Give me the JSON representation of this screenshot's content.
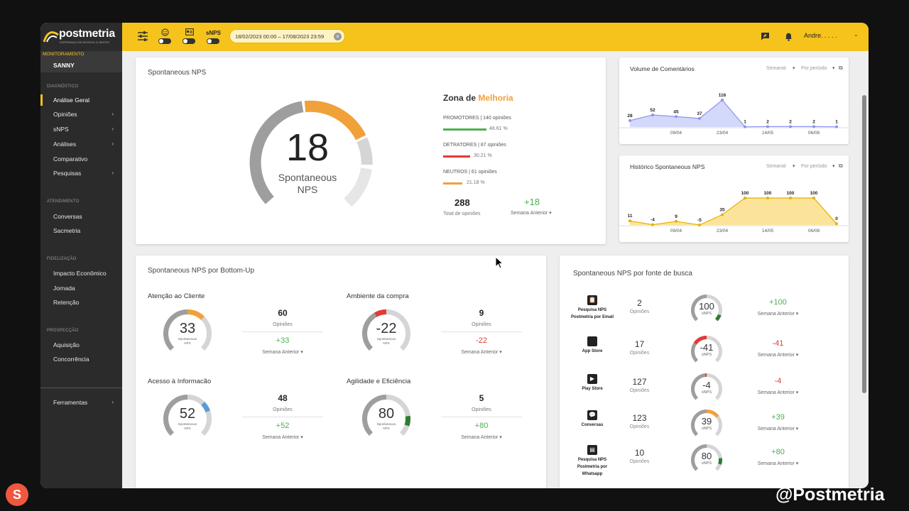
{
  "brand": {
    "name": "postmetria",
    "tagline": "ESPERANÇA DE NOSSOS CLIENTES"
  },
  "header": {
    "snps_label": "sNPS",
    "date_range": "18/02/2023 00:00 – 17/08/2023 23:59",
    "user_name": "Andre. . . . ."
  },
  "sidebar": {
    "monitoring_label": "MONITORAMENTO",
    "account": "SANNY",
    "sections": {
      "diagnostico": "DIAGNÓSTICO",
      "atendimento": "ATENDIMENTO",
      "fidelizacao": "FIDELIZAÇÃO",
      "prospeccao": "PROSPECÇÃO"
    },
    "items": {
      "analise_geral": "Análise Geral",
      "opinioes": "Opiniões",
      "snps": "sNPS",
      "analises": "Análises",
      "comparativo": "Comparativo",
      "pesquisas": "Pesquisas",
      "conversas": "Conversas",
      "sacmetria": "Sacmetria",
      "impacto": "Impacto Econômico",
      "jornada": "Jornada",
      "retencao": "Retenção",
      "aquisicao": "Aquisição",
      "concorrencia": "Concorrência",
      "ferramentas": "Ferramentas"
    }
  },
  "main_card": {
    "title": "Spontaneous NPS",
    "score": "18",
    "score_label_1": "Spontaneous",
    "score_label_2": "NPS",
    "zone_prefix": "Zona de",
    "zone_value": "Melhoria",
    "promotores": {
      "label": "PROMOTORES | 140 opiniões",
      "pct": "48.61 %",
      "fraction": 0.4861
    },
    "detratores": {
      "label": "DETRATORES | 87 opiniões",
      "pct": "30.21 %",
      "fraction": 0.3021
    },
    "neutros": {
      "label": "NEUTROS | 61 opiniões",
      "pct": "21.18 %",
      "fraction": 0.2118
    },
    "total": "288",
    "total_label": "Total de opiniões",
    "delta": "+18",
    "delta_label": "Semana Anterior"
  },
  "volume_card": {
    "title": "Volume de Comentários",
    "filter_1": "Semanal",
    "filter_2": "Por período",
    "chart_data": {
      "type": "area",
      "values": [
        28,
        52,
        45,
        37,
        116,
        1,
        2,
        2,
        2,
        1
      ],
      "labels": [
        "28",
        "52",
        "45",
        "37",
        "116",
        "1",
        "2",
        "2",
        "2",
        "1"
      ],
      "x_ticks": [
        "09/04",
        "23/04",
        "14/05",
        "06/08"
      ],
      "color": "#9fa8f5"
    }
  },
  "historico_card": {
    "title": "Histórico Spontaneous NPS",
    "filter_1": "Semanal",
    "filter_2": "Por período",
    "chart_data": {
      "type": "area",
      "values": [
        11,
        -4,
        9,
        -5,
        35,
        100,
        100,
        100,
        100,
        0
      ],
      "labels": [
        "11",
        "-4",
        "9",
        "-5",
        "35",
        "100",
        "100",
        "100",
        "100",
        "0"
      ],
      "x_ticks": [
        "09/04",
        "23/04",
        "14/05",
        "06/08"
      ],
      "color": "#f6c31c"
    }
  },
  "bottomup_card": {
    "title": "Spontaneous NPS por Bottom-Up",
    "items": [
      {
        "name": "Atenção ao Cliente",
        "score": "33",
        "opinions": "60",
        "opinions_label": "Opiniões",
        "delta": "+33",
        "delta_label": "Semana Anterior",
        "g1": "Spontaneous",
        "g2": "NPS"
      },
      {
        "name": "Ambiente da compra",
        "score": "-22",
        "opinions": "9",
        "opinions_label": "Opiniões",
        "delta": "-22",
        "delta_label": "Semana Anterior",
        "g1": "Spontaneous",
        "g2": "NPS"
      },
      {
        "name": "Acesso à Informacão",
        "score": "52",
        "opinions": "48",
        "opinions_label": "Opiniões",
        "delta": "+52",
        "delta_label": "Semana Anterior",
        "g1": "Spontaneous",
        "g2": "NPS"
      },
      {
        "name": "Agilidade e Eficiência",
        "score": "80",
        "opinions": "5",
        "opinions_label": "Opiniões",
        "delta": "+80",
        "delta_label": "Semana Anterior",
        "g1": "Spontaneous",
        "g2": "NPS"
      }
    ]
  },
  "fonte_card": {
    "title": "Spontaneous NPS por fonte de busca",
    "items": [
      {
        "name_1": "Pesquisa NPS",
        "name_2": "Postmetria por Email",
        "name_3": "",
        "count": "2",
        "count_label": "Opiniões",
        "score": "100",
        "score_label": "sNPS",
        "delta": "+100",
        "delta_label": "Semana Anterior"
      },
      {
        "name_1": "App Store",
        "name_2": "",
        "name_3": "",
        "count": "17",
        "count_label": "Opiniões",
        "score": "-41",
        "score_label": "sNPS",
        "delta": "-41",
        "delta_label": "Semana Anterior"
      },
      {
        "name_1": "Play Store",
        "name_2": "",
        "name_3": "",
        "count": "127",
        "count_label": "Opiniões",
        "score": "-4",
        "score_label": "sNPS",
        "delta": "-4",
        "delta_label": "Semana Anterior"
      },
      {
        "name_1": "Conversas",
        "name_2": "",
        "name_3": "",
        "count": "123",
        "count_label": "Opiniões",
        "score": "39",
        "score_label": "sNPS",
        "delta": "+39",
        "delta_label": "Semana Anterior"
      },
      {
        "name_1": "Pesquisa NPS",
        "name_2": "Postmetria por",
        "name_3": "Whatsapp",
        "count": "10",
        "count_label": "Opiniões",
        "score": "80",
        "score_label": "sNPS",
        "delta": "+80",
        "delta_label": "Semana Anterior"
      }
    ]
  },
  "watermark": {
    "text": "@Postmetria",
    "badge": "S"
  }
}
